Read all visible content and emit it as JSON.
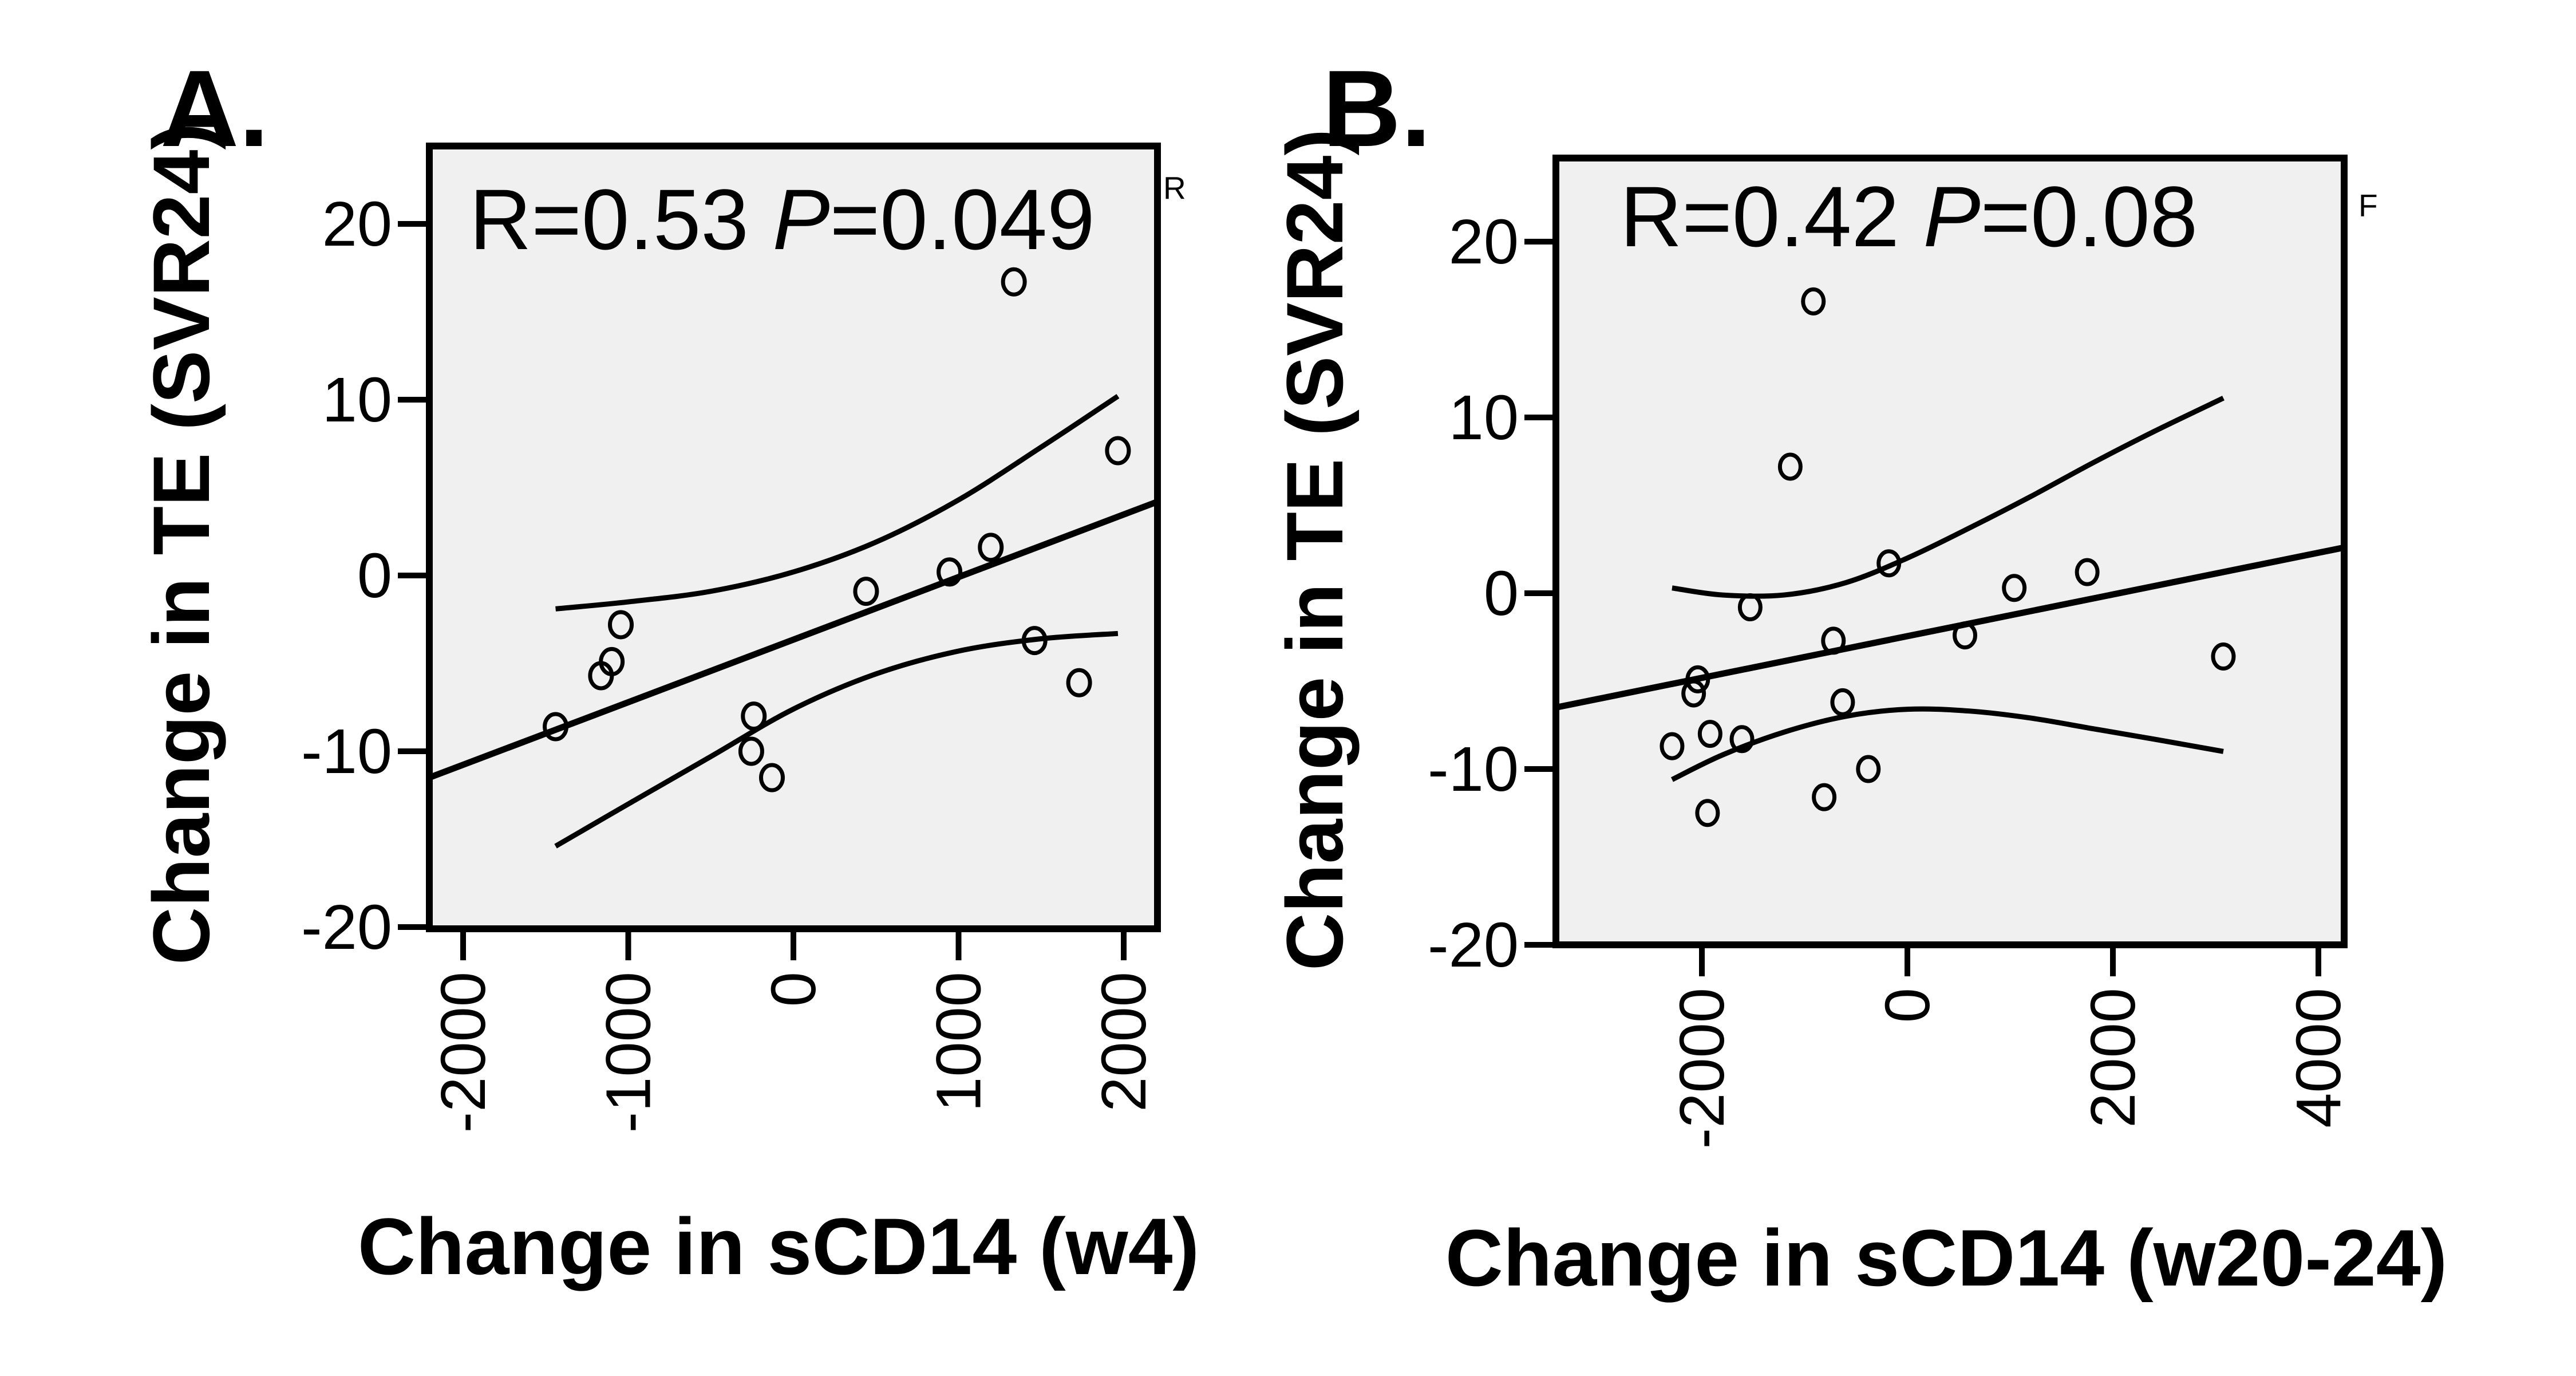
{
  "chart_data": [
    {
      "panel": "A.",
      "type": "scatter",
      "title": "",
      "annotation": {
        "r_text": "R=0.53 ",
        "p_label": "P",
        "p_text": "=0.049"
      },
      "corner_mark": "R",
      "xlabel": "Change in sCD14 (w4)",
      "ylabel": "Change in TE (SVR24)",
      "xlim": [
        -2205,
        2205
      ],
      "ylim": [
        -20,
        25
      ],
      "xticks": [
        -2000,
        -1000,
        0,
        1000,
        2000
      ],
      "xtick_labels": [
        "-2000",
        "-1000",
        "0",
        "1000",
        "2000"
      ],
      "yticks": [
        -20,
        -10,
        0,
        10,
        20
      ],
      "ytick_labels": [
        "-20",
        "-10",
        "0",
        "10",
        "20"
      ],
      "grid": false,
      "points": [
        {
          "x": -1440,
          "y": -8.6
        },
        {
          "x": -1165,
          "y": -5.7
        },
        {
          "x": -1100,
          "y": -4.9
        },
        {
          "x": -1045,
          "y": -2.8
        },
        {
          "x": -240,
          "y": -8.0
        },
        {
          "x": -255,
          "y": -10.0
        },
        {
          "x": -130,
          "y": -11.5
        },
        {
          "x": 440,
          "y": -0.9
        },
        {
          "x": 945,
          "y": 0.2
        },
        {
          "x": 1195,
          "y": 1.6
        },
        {
          "x": 1460,
          "y": -3.7
        },
        {
          "x": 1730,
          "y": -6.1
        },
        {
          "x": 1335,
          "y": 16.7
        },
        {
          "x": 1965,
          "y": 7.1
        }
      ],
      "fit_line": {
        "x": [
          -2205,
          2205
        ],
        "y": [
          -11.5,
          4.2
        ]
      },
      "ci_upper": {
        "x": [
          -1440,
          -1000,
          -500,
          0,
          500,
          1000,
          1500,
          1965
        ],
        "y": [
          -1.9,
          -1.5,
          -0.9,
          0.2,
          1.9,
          4.3,
          7.3,
          10.2
        ]
      },
      "ci_lower": {
        "x": [
          -1440,
          -1000,
          -500,
          0,
          500,
          1000,
          1500,
          1965
        ],
        "y": [
          -15.4,
          -13.0,
          -10.3,
          -7.6,
          -5.6,
          -4.3,
          -3.6,
          -3.3
        ]
      }
    },
    {
      "panel": "B.",
      "type": "scatter",
      "title": "",
      "annotation": {
        "r_text": "R=0.42 ",
        "p_label": "P",
        "p_text": "=0.08"
      },
      "corner_mark": "F",
      "xlabel": "Change in sCD14 (w20-24)",
      "ylabel": "Change in TE (SVR24)",
      "xlim": [
        -3420,
        4250
      ],
      "ylim": [
        -20,
        24.5
      ],
      "xticks": [
        -2000,
        0,
        2000,
        4000
      ],
      "xtick_labels": [
        "-2000",
        "0",
        "2000",
        "4000"
      ],
      "yticks": [
        -20,
        -10,
        0,
        10,
        20
      ],
      "ytick_labels": [
        "-20",
        "-10",
        "0",
        "10",
        "20"
      ],
      "grid": false,
      "points": [
        {
          "x": -915,
          "y": 16.6
        },
        {
          "x": -1140,
          "y": 7.2
        },
        {
          "x": -180,
          "y": 1.7
        },
        {
          "x": 1040,
          "y": 0.3
        },
        {
          "x": 1750,
          "y": 1.2
        },
        {
          "x": 560,
          "y": -2.4
        },
        {
          "x": -1530,
          "y": -0.8
        },
        {
          "x": -720,
          "y": -2.7
        },
        {
          "x": -2040,
          "y": -4.9
        },
        {
          "x": -2080,
          "y": -5.7
        },
        {
          "x": 3075,
          "y": -3.6
        },
        {
          "x": -630,
          "y": -6.2
        },
        {
          "x": -2290,
          "y": -8.7
        },
        {
          "x": -1920,
          "y": -8.0
        },
        {
          "x": -1610,
          "y": -8.3
        },
        {
          "x": -1945,
          "y": -12.5
        },
        {
          "x": -810,
          "y": -11.6
        },
        {
          "x": -380,
          "y": -10.0
        }
      ],
      "fit_line": {
        "x": [
          -3420,
          4250
        ],
        "y": [
          -6.5,
          2.6
        ]
      },
      "ci_upper": {
        "x": [
          -2290,
          -1800,
          -1200,
          -600,
          0,
          600,
          1200,
          1800,
          2400,
          3075
        ],
        "y": [
          0.3,
          -0.1,
          -0.1,
          0.6,
          2.0,
          3.7,
          5.5,
          7.4,
          9.2,
          11.1
        ]
      },
      "ci_lower": {
        "x": [
          -2290,
          -1800,
          -1200,
          -600,
          0,
          600,
          1200,
          1800,
          2400,
          3075
        ],
        "y": [
          -10.6,
          -9.2,
          -7.9,
          -7.0,
          -6.6,
          -6.7,
          -7.1,
          -7.7,
          -8.3,
          -9.0
        ]
      }
    }
  ]
}
